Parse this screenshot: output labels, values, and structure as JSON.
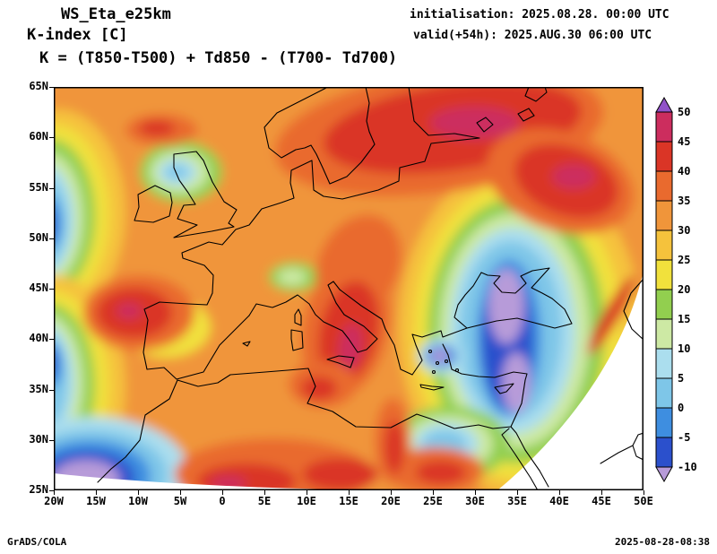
{
  "header": {
    "model": "WS_Eta_e25km",
    "field": "K-index [C]",
    "formula": "K = (T850-T500) + Td850 - (T700- Td700)",
    "init": "initialisation: 2025.08.28. 00:00 UTC",
    "valid": "valid(+54h): 2025.AUG.30 06:00 UTC"
  },
  "footer": {
    "left": "GrADS/COLA",
    "right": "2025-08-28-08:38"
  },
  "colorbar": {
    "labels_top_to_bottom": [
      "50",
      "45",
      "40",
      "35",
      "30",
      "25",
      "20",
      "15",
      "10",
      "5",
      "0",
      "-5",
      "-10"
    ],
    "colors_top_to_bottom": [
      "#9152c8",
      "#cc2d5e",
      "#da3526",
      "#e96a2e",
      "#f0953a",
      "#f5c23c",
      "#f1e13c",
      "#92cf4f",
      "#cde9a4",
      "#abdeee",
      "#7ec6e8",
      "#3e8ee0",
      "#2b50cc",
      "#b79bd9"
    ]
  },
  "chart_data": {
    "type": "filled_contour_map",
    "title": "K-index [C]",
    "variable": "K-index",
    "units": "C",
    "region": {
      "lon_min": -20,
      "lon_max": 50,
      "lat_min": 25,
      "lat_max": 65
    },
    "lon_ticks": [
      "20W",
      "15W",
      "10W",
      "5W",
      "0",
      "5E",
      "10E",
      "15E",
      "20E",
      "25E",
      "30E",
      "35E",
      "40E",
      "45E",
      "50E"
    ],
    "lat_ticks": [
      "65N",
      "60N",
      "55N",
      "50N",
      "45N",
      "40N",
      "35N",
      "30N",
      "25N"
    ],
    "levels": [
      -10,
      -5,
      0,
      5,
      10,
      15,
      20,
      25,
      30,
      35,
      40,
      45,
      50
    ],
    "palette": [
      {
        "range": "< -10",
        "color": "#b79bd9"
      },
      {
        "range": "-10 to -5",
        "color": "#2b50cc"
      },
      {
        "range": "-5 to 0",
        "color": "#3e8ee0"
      },
      {
        "range": "0 to 5",
        "color": "#7ec6e8"
      },
      {
        "range": "5 to 10",
        "color": "#abdeee"
      },
      {
        "range": "10 to 15",
        "color": "#cde9a4"
      },
      {
        "range": "15 to 20",
        "color": "#92cf4f"
      },
      {
        "range": "20 to 25",
        "color": "#f1e13c"
      },
      {
        "range": "25 to 30",
        "color": "#f5c23c"
      },
      {
        "range": "30 to 35",
        "color": "#f0953a"
      },
      {
        "range": "35 to 40",
        "color": "#e96a2e"
      },
      {
        "range": "40 to 45",
        "color": "#da3526"
      },
      {
        "range": "45 to 50",
        "color": "#cc2d5e"
      },
      {
        "range": "> 50",
        "color": "#9152c8"
      }
    ],
    "features": [
      "Broad high K (35-45) band across Scandinavia, the Baltic and NW Russia with embedded 45+ cores",
      "High K (40-45) core over Italy and the central Mediterranean",
      "High K cell in the Atlantic west of Biscay/Iberia",
      "High K (35-45) areas along the North African southern edge of the map",
      "Very low K (< -10, lavender) pool over Ukraine / Black Sea region ringed by blue and cyan",
      "Very low K (< -10) area in the subtropical Atlantic bottom-left corner",
      "Low K (0-10) bands along the western map edge and a small cool spot over Scotland/Ireland",
      "Small lavender minimum over the Aegean Sea",
      "White no-data sector in the lower-right (Middle East) corner of the fan-shaped domain",
      "Background over central/western Europe mostly 25-35 (orange)"
    ]
  }
}
